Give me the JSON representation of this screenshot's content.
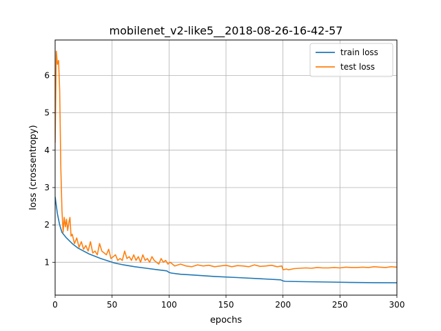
{
  "chart_data": {
    "type": "line",
    "title": "mobilenet_v2-like5__2018-08-26-16-42-57",
    "xlabel": "epochs",
    "ylabel": "loss (crossentropy)",
    "xlim": [
      0,
      300
    ],
    "ylim": [
      0.12,
      6.95
    ],
    "xticks": [
      0,
      50,
      100,
      150,
      200,
      250,
      300
    ],
    "yticks": [
      1,
      2,
      3,
      4,
      5,
      6
    ],
    "grid": true,
    "legend_position": "top-right",
    "series": [
      {
        "name": "train loss",
        "color": "#1f77b4",
        "x": [
          0,
          2,
          4,
          6,
          10,
          15,
          20,
          25,
          30,
          40,
          50,
          52,
          60,
          70,
          80,
          90,
          98,
          100,
          102,
          110,
          120,
          140,
          160,
          180,
          198,
          200,
          202,
          220,
          240,
          260,
          280,
          300
        ],
        "y": [
          2.75,
          2.3,
          2.0,
          1.8,
          1.65,
          1.5,
          1.38,
          1.3,
          1.22,
          1.1,
          1.0,
          0.98,
          0.93,
          0.88,
          0.84,
          0.8,
          0.77,
          0.73,
          0.71,
          0.68,
          0.66,
          0.62,
          0.59,
          0.56,
          0.53,
          0.5,
          0.49,
          0.48,
          0.47,
          0.46,
          0.455,
          0.45
        ]
      },
      {
        "name": "test loss",
        "color": "#ff7f0e",
        "x": [
          0,
          1,
          2,
          3,
          4,
          5,
          6,
          7,
          8,
          9,
          10,
          11,
          12,
          13,
          14,
          15,
          17,
          19,
          21,
          23,
          25,
          27,
          29,
          31,
          33,
          35,
          37,
          39,
          41,
          43,
          45,
          47,
          49,
          51,
          53,
          55,
          57,
          59,
          61,
          63,
          65,
          67,
          69,
          71,
          73,
          75,
          77,
          79,
          81,
          83,
          85,
          87,
          89,
          91,
          93,
          95,
          97,
          99,
          101,
          105,
          110,
          115,
          120,
          125,
          130,
          135,
          140,
          145,
          150,
          155,
          160,
          165,
          170,
          175,
          180,
          185,
          190,
          195,
          199,
          200,
          203,
          205,
          210,
          215,
          220,
          225,
          230,
          235,
          240,
          245,
          250,
          255,
          260,
          265,
          270,
          275,
          280,
          285,
          290,
          295,
          300
        ],
        "y": [
          4.2,
          6.65,
          6.3,
          6.4,
          5.6,
          3.5,
          2.4,
          1.8,
          2.2,
          1.95,
          2.15,
          1.85,
          2.05,
          2.2,
          1.7,
          1.75,
          1.5,
          1.65,
          1.4,
          1.55,
          1.35,
          1.45,
          1.3,
          1.55,
          1.25,
          1.3,
          1.2,
          1.5,
          1.3,
          1.25,
          1.2,
          1.35,
          1.1,
          1.15,
          1.2,
          1.05,
          1.1,
          1.05,
          1.3,
          1.1,
          1.15,
          1.05,
          1.2,
          1.05,
          1.15,
          1.0,
          1.2,
          1.05,
          1.1,
          1.0,
          1.15,
          1.05,
          1.0,
          0.95,
          1.1,
          1.0,
          1.05,
          0.95,
          1.0,
          0.9,
          0.95,
          0.9,
          0.88,
          0.93,
          0.9,
          0.92,
          0.88,
          0.9,
          0.92,
          0.88,
          0.91,
          0.9,
          0.88,
          0.93,
          0.89,
          0.9,
          0.92,
          0.88,
          0.9,
          0.8,
          0.82,
          0.8,
          0.83,
          0.84,
          0.85,
          0.84,
          0.86,
          0.85,
          0.85,
          0.86,
          0.85,
          0.87,
          0.86,
          0.86,
          0.87,
          0.86,
          0.88,
          0.87,
          0.86,
          0.88,
          0.87
        ]
      }
    ]
  }
}
